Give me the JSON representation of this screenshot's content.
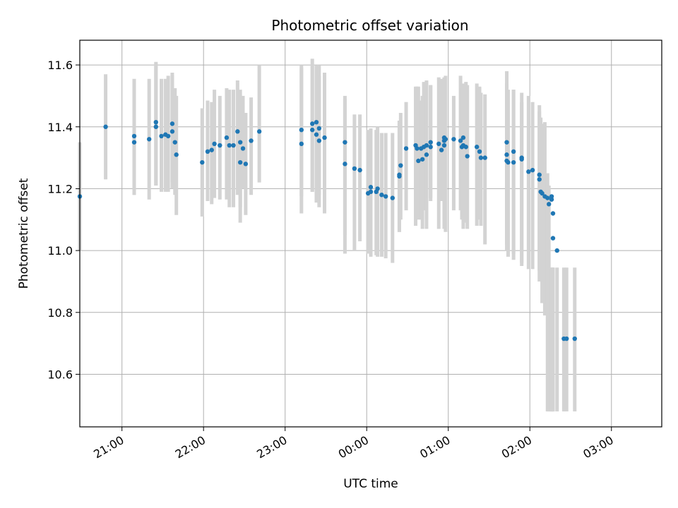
{
  "chart_data": {
    "type": "scatter",
    "title": "Photometric offset variation",
    "xlabel": "UTC time",
    "ylabel": "Photometric offset",
    "x_axis_type": "time",
    "xlim": [
      "20:29",
      "03:37"
    ],
    "ylim": [
      10.43,
      11.68
    ],
    "grid": true,
    "x_ticks": [
      "21:00",
      "22:00",
      "23:00",
      "00:00",
      "01:00",
      "02:00",
      "03:00"
    ],
    "y_ticks": [
      10.6,
      10.8,
      11.0,
      11.2,
      11.4,
      11.6
    ],
    "y_tick_labels": [
      "10.6",
      "10.8",
      "11.0",
      "11.2",
      "11.4",
      "11.6"
    ],
    "colors": {
      "points": "#1f77b4",
      "error_bars": "#d3d3d3",
      "grid": "#b0b0b0"
    },
    "series": [
      {
        "marker": "point",
        "errorbars": true,
        "x": [
          "20:29",
          "20:48",
          "21:09",
          "21:09",
          "21:20",
          "21:25",
          "21:25",
          "21:29",
          "21:32",
          "21:34",
          "21:37",
          "21:37",
          "21:39",
          "21:40",
          "21:59",
          "22:03",
          "22:06",
          "22:08",
          "22:12",
          "22:17",
          "22:19",
          "22:22",
          "22:25",
          "22:27",
          "22:27",
          "22:29",
          "22:31",
          "22:35",
          "22:41",
          "23:12",
          "23:12",
          "23:20",
          "23:20",
          "23:23",
          "23:23",
          "23:25",
          "23:25",
          "23:29",
          "23:44",
          "23:44",
          "23:51",
          "23:55",
          "24:01",
          "24:03",
          "24:03",
          "24:07",
          "24:08",
          "24:11",
          "24:14",
          "24:19",
          "24:24",
          "24:24",
          "24:25",
          "24:29",
          "24:36",
          "24:37",
          "24:38",
          "24:40",
          "24:41",
          "24:42",
          "24:44",
          "24:44",
          "24:47",
          "24:47",
          "24:53",
          "24:55",
          "24:57",
          "24:57",
          "24:57",
          "24:58",
          "25:04",
          "25:09",
          "25:10",
          "25:11",
          "25:11",
          "25:13",
          "25:14",
          "25:21",
          "25:23",
          "25:24",
          "25:27",
          "25:43",
          "25:43",
          "25:43",
          "25:44",
          "25:48",
          "25:48",
          "25:54",
          "25:54",
          "25:59",
          "26:02",
          "26:07",
          "26:07",
          "26:08",
          "26:09",
          "26:11",
          "26:13",
          "26:14",
          "26:16",
          "26:16",
          "26:17",
          "26:17",
          "26:20",
          "26:25",
          "26:27",
          "26:33"
        ],
        "y": [
          11.175,
          11.4,
          11.35,
          11.37,
          11.36,
          11.415,
          11.4,
          11.37,
          11.375,
          11.37,
          11.41,
          11.385,
          11.35,
          11.31,
          11.285,
          11.32,
          11.325,
          11.345,
          11.34,
          11.365,
          11.34,
          11.34,
          11.385,
          11.35,
          11.285,
          11.33,
          11.28,
          11.355,
          11.385,
          11.345,
          11.39,
          11.41,
          11.39,
          11.415,
          11.375,
          11.355,
          11.395,
          11.365,
          11.35,
          11.28,
          11.265,
          11.26,
          11.185,
          11.205,
          11.19,
          11.19,
          11.2,
          11.18,
          11.175,
          11.17,
          11.24,
          11.245,
          11.275,
          11.33,
          11.34,
          11.33,
          11.29,
          11.33,
          11.295,
          11.335,
          11.31,
          11.34,
          11.335,
          11.35,
          11.345,
          11.325,
          11.34,
          11.355,
          11.365,
          11.36,
          11.36,
          11.355,
          11.335,
          11.34,
          11.365,
          11.335,
          11.305,
          11.335,
          11.32,
          11.3,
          11.3,
          11.29,
          11.31,
          11.35,
          11.285,
          11.285,
          11.32,
          11.295,
          11.3,
          11.255,
          11.26,
          11.245,
          11.23,
          11.19,
          11.185,
          11.175,
          11.17,
          11.15,
          11.165,
          11.175,
          11.12,
          11.04,
          11.0,
          10.715,
          10.715,
          10.715
        ],
        "err_low": [
          11.0,
          11.23,
          11.18,
          11.18,
          11.165,
          11.21,
          11.21,
          11.19,
          11.19,
          11.19,
          11.22,
          11.2,
          11.18,
          11.115,
          11.11,
          11.16,
          11.15,
          11.17,
          11.165,
          11.165,
          11.14,
          11.14,
          11.18,
          11.14,
          11.09,
          11.2,
          11.115,
          11.18,
          11.22,
          11.12,
          11.175,
          11.19,
          11.19,
          11.21,
          11.155,
          11.14,
          11.18,
          11.12,
          11.05,
          10.99,
          11.0,
          11.03,
          10.99,
          10.985,
          10.98,
          10.985,
          10.98,
          10.98,
          10.975,
          10.96,
          11.06,
          11.06,
          11.1,
          11.13,
          11.08,
          11.12,
          11.1,
          11.1,
          11.07,
          11.13,
          11.07,
          11.1,
          11.16,
          11.17,
          11.07,
          11.16,
          11.2,
          11.1,
          11.07,
          11.06,
          11.13,
          11.13,
          11.1,
          11.07,
          11.16,
          11.09,
          11.07,
          11.08,
          11.1,
          11.08,
          11.02,
          11.11,
          11.02,
          11.0,
          10.98,
          10.97,
          10.99,
          10.95,
          10.96,
          10.94,
          10.94,
          10.935,
          10.9,
          10.92,
          10.83,
          10.79,
          10.48,
          10.48,
          10.48,
          10.48,
          10.48,
          10.48,
          10.48,
          10.48,
          10.48,
          10.48
        ],
        "err_high": [
          11.35,
          11.57,
          11.525,
          11.555,
          11.555,
          11.61,
          11.605,
          11.555,
          11.555,
          11.565,
          11.575,
          11.565,
          11.525,
          11.5,
          11.46,
          11.485,
          11.48,
          11.52,
          11.5,
          11.525,
          11.52,
          11.52,
          11.55,
          11.52,
          11.485,
          11.5,
          11.445,
          11.495,
          11.6,
          11.59,
          11.6,
          11.62,
          11.6,
          11.6,
          11.59,
          11.565,
          11.6,
          11.575,
          11.5,
          11.49,
          11.44,
          11.44,
          11.39,
          11.395,
          11.395,
          11.39,
          11.4,
          11.38,
          11.38,
          11.38,
          11.42,
          11.42,
          11.445,
          11.48,
          11.53,
          11.53,
          11.53,
          11.485,
          11.5,
          11.545,
          11.55,
          11.545,
          11.535,
          11.535,
          11.56,
          11.555,
          11.55,
          11.55,
          11.56,
          11.565,
          11.5,
          11.565,
          11.525,
          11.54,
          11.52,
          11.545,
          11.535,
          11.54,
          11.53,
          11.51,
          11.505,
          11.58,
          11.54,
          11.54,
          11.52,
          11.52,
          11.52,
          11.51,
          11.48,
          11.5,
          11.48,
          11.47,
          11.45,
          11.43,
          11.41,
          11.415,
          11.25,
          11.21,
          10.945,
          10.945,
          10.945,
          10.945,
          10.945,
          10.945,
          10.945,
          10.945
        ]
      }
    ]
  }
}
